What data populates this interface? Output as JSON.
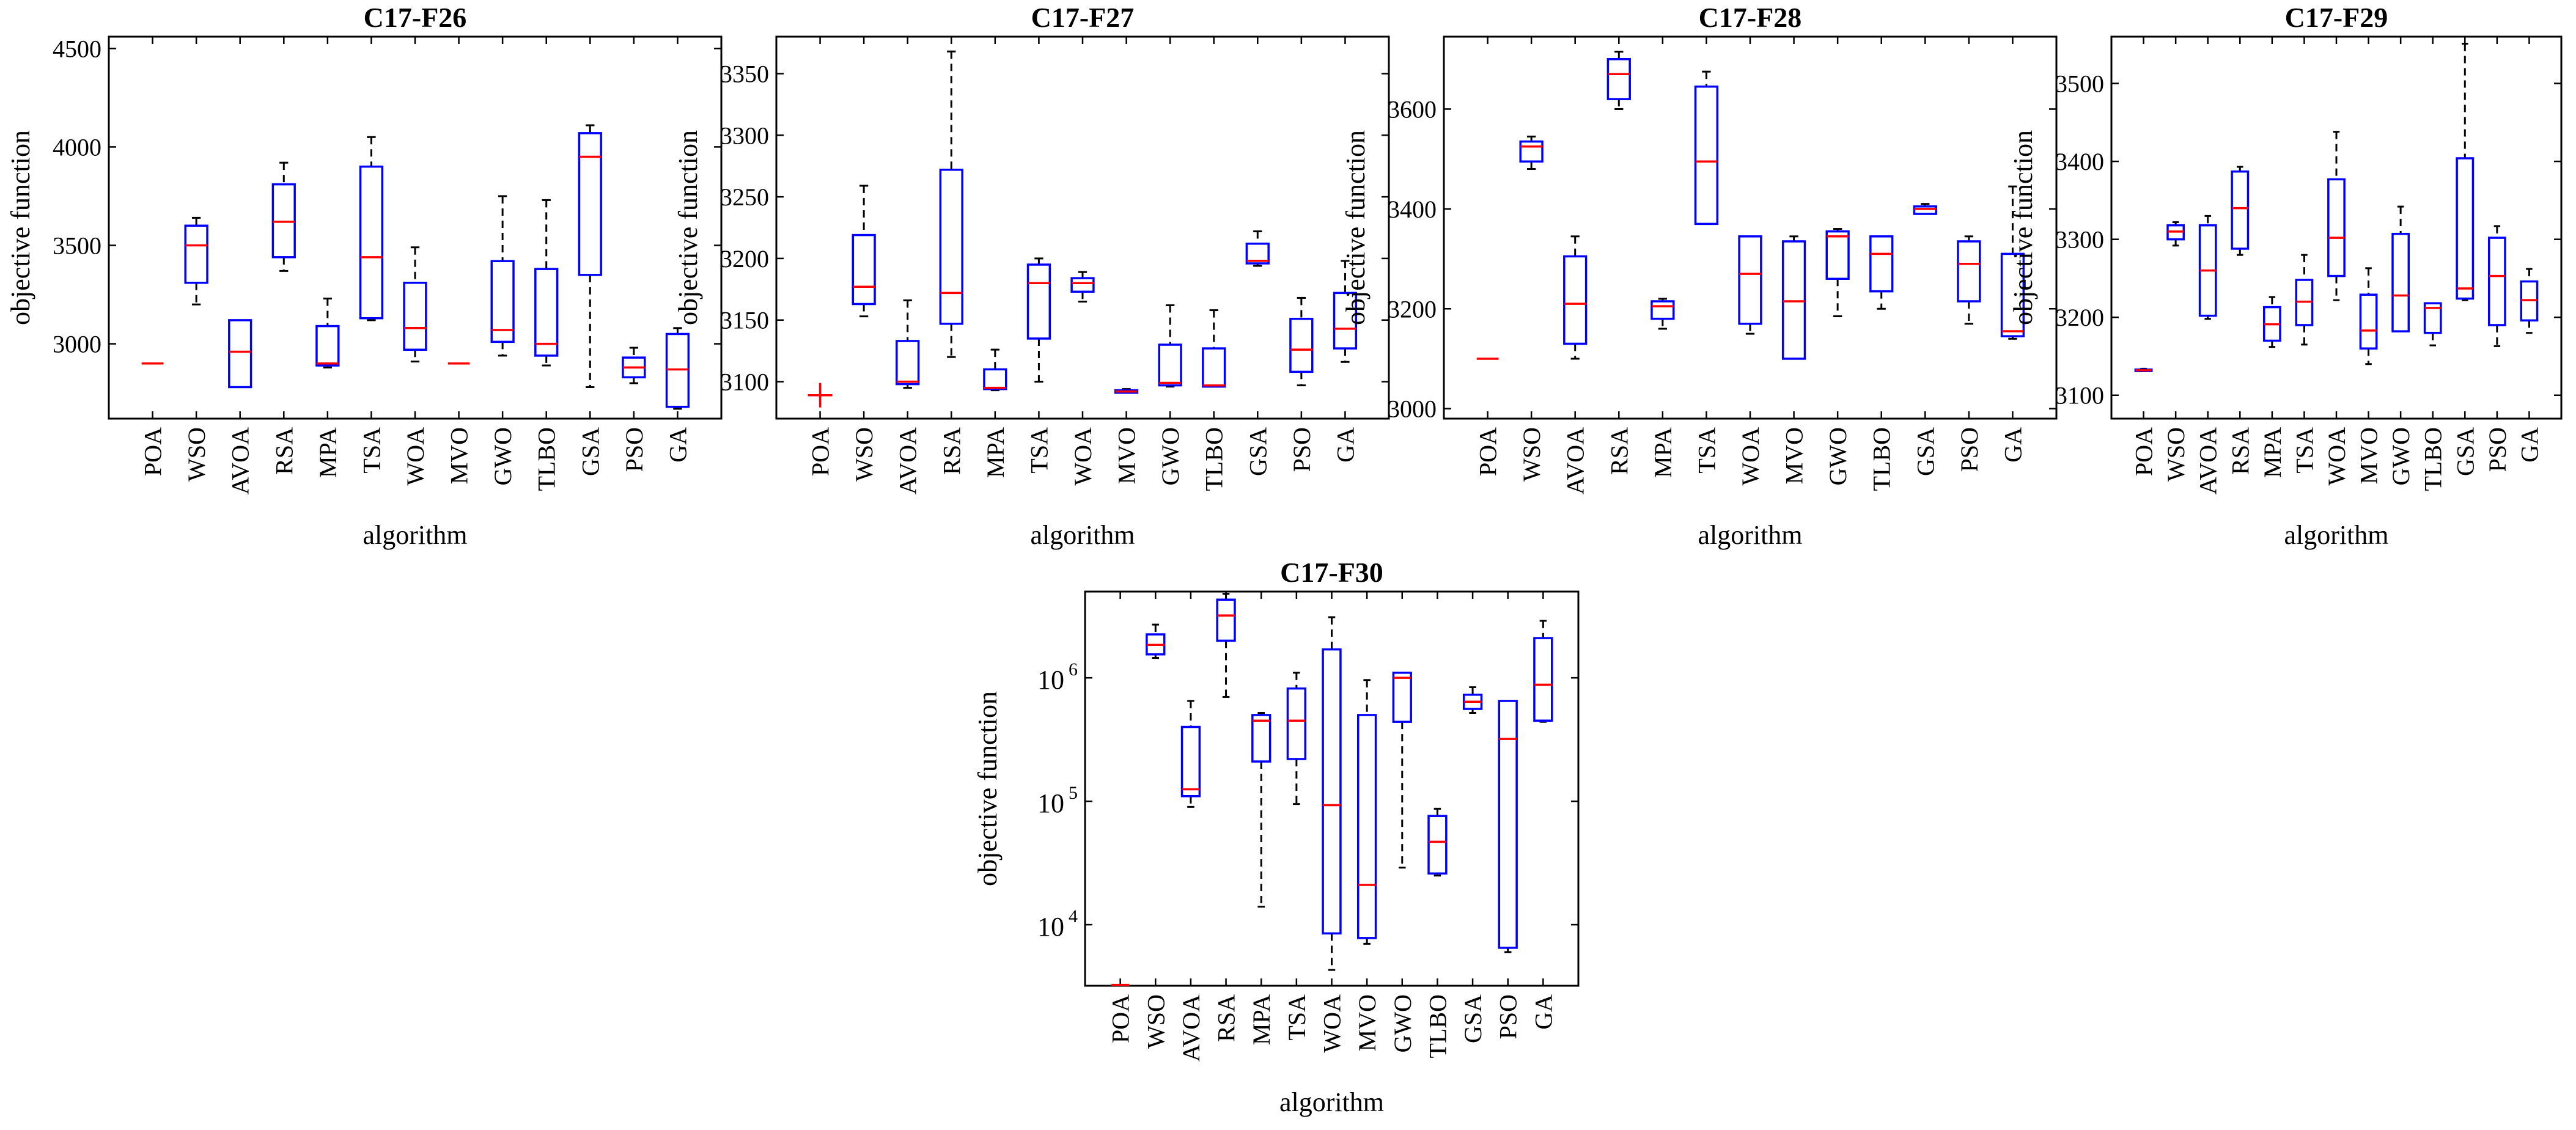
{
  "figure": {
    "categories": [
      "POA",
      "WSO",
      "AVOA",
      "RSA",
      "MPA",
      "TSA",
      "WOA",
      "MVO",
      "GWO",
      "TLBO",
      "GSA",
      "PSO",
      "GA"
    ],
    "colors": {
      "box": "#0000FF",
      "median": "#FF0000",
      "whisker": "#000000",
      "outlier": "#FF0000"
    }
  },
  "chart_data": [
    {
      "type": "box",
      "title": "C17-F26",
      "xlabel": "algorithm",
      "ylabel": "objective function",
      "yscale": "linear",
      "ylim": [
        2620,
        4560
      ],
      "yticks": [
        3000,
        3500,
        4000,
        4500
      ],
      "ytick_labels": [
        "3000",
        "3500",
        "4000",
        "4500"
      ],
      "boxes": [
        {
          "name": "POA",
          "min": 2900,
          "q1": 2900,
          "median": 2900,
          "q3": 2900,
          "max": 2900
        },
        {
          "name": "WSO",
          "min": 3200,
          "q1": 3310,
          "median": 3500,
          "q3": 3600,
          "max": 3640
        },
        {
          "name": "AVOA",
          "min": 2780,
          "q1": 2780,
          "median": 2960,
          "q3": 3120,
          "max": 3120
        },
        {
          "name": "RSA",
          "min": 3370,
          "q1": 3440,
          "median": 3620,
          "q3": 3810,
          "max": 3920
        },
        {
          "name": "MPA",
          "min": 2880,
          "q1": 2890,
          "median": 2900,
          "q3": 3090,
          "max": 3230
        },
        {
          "name": "TSA",
          "min": 3120,
          "q1": 3130,
          "median": 3440,
          "q3": 3900,
          "max": 4050
        },
        {
          "name": "WOA",
          "min": 2910,
          "q1": 2970,
          "median": 3080,
          "q3": 3310,
          "max": 3490
        },
        {
          "name": "MVO",
          "min": 2900,
          "q1": 2900,
          "median": 2900,
          "q3": 2900,
          "max": 2900
        },
        {
          "name": "GWO",
          "min": 2940,
          "q1": 3010,
          "median": 3070,
          "q3": 3420,
          "max": 3750
        },
        {
          "name": "TLBO",
          "min": 2890,
          "q1": 2940,
          "median": 3000,
          "q3": 3380,
          "max": 3730
        },
        {
          "name": "GSA",
          "min": 2780,
          "q1": 3350,
          "median": 3950,
          "q3": 4070,
          "max": 4110
        },
        {
          "name": "PSO",
          "min": 2800,
          "q1": 2830,
          "median": 2880,
          "q3": 2930,
          "max": 2980
        },
        {
          "name": "GA",
          "min": 2670,
          "q1": 2680,
          "median": 2870,
          "q3": 3050,
          "max": 3080
        }
      ],
      "outliers": []
    },
    {
      "type": "box",
      "title": "C17-F27",
      "xlabel": "algorithm",
      "ylabel": "objective function",
      "yscale": "linear",
      "ylim": [
        3070,
        3380
      ],
      "yticks": [
        3100,
        3150,
        3200,
        3250,
        3300,
        3350
      ],
      "ytick_labels": [
        "3100",
        "3150",
        "3200",
        "3250",
        "3300",
        "3350"
      ],
      "boxes": [
        {
          "name": "POA",
          "min": 3089,
          "q1": 3089,
          "median": 3089,
          "q3": 3089,
          "max": 3089
        },
        {
          "name": "WSO",
          "min": 3153,
          "q1": 3163,
          "median": 3177,
          "q3": 3219,
          "max": 3259
        },
        {
          "name": "AVOA",
          "min": 3095,
          "q1": 3098,
          "median": 3100,
          "q3": 3133,
          "max": 3166
        },
        {
          "name": "RSA",
          "min": 3120,
          "q1": 3147,
          "median": 3172,
          "q3": 3272,
          "max": 3368
        },
        {
          "name": "MPA",
          "min": 3093,
          "q1": 3094,
          "median": 3095,
          "q3": 3110,
          "max": 3126
        },
        {
          "name": "TSA",
          "min": 3100,
          "q1": 3135,
          "median": 3180,
          "q3": 3195,
          "max": 3200
        },
        {
          "name": "WOA",
          "min": 3165,
          "q1": 3173,
          "median": 3180,
          "q3": 3184,
          "max": 3189
        },
        {
          "name": "MVO",
          "min": 3091,
          "q1": 3091,
          "median": 3092,
          "q3": 3093,
          "max": 3094
        },
        {
          "name": "GWO",
          "min": 3096,
          "q1": 3097,
          "median": 3099,
          "q3": 3130,
          "max": 3162
        },
        {
          "name": "TLBO",
          "min": 3096,
          "q1": 3096,
          "median": 3097,
          "q3": 3127,
          "max": 3158
        },
        {
          "name": "GSA",
          "min": 3194,
          "q1": 3196,
          "median": 3198,
          "q3": 3212,
          "max": 3222
        },
        {
          "name": "PSO",
          "min": 3097,
          "q1": 3108,
          "median": 3126,
          "q3": 3151,
          "max": 3168
        },
        {
          "name": "GA",
          "min": 3116,
          "q1": 3127,
          "median": 3143,
          "q3": 3172,
          "max": 3198
        }
      ],
      "outliers": [
        {
          "name": "POA",
          "value": 3089
        }
      ]
    },
    {
      "type": "box",
      "title": "C17-F28",
      "xlabel": "algorithm",
      "ylabel": "objective function",
      "yscale": "linear",
      "ylim": [
        2980,
        3745
      ],
      "yticks": [
        3000,
        3200,
        3400,
        3600
      ],
      "ytick_labels": [
        "3000",
        "3200",
        "3400",
        "3600"
      ],
      "boxes": [
        {
          "name": "POA",
          "min": 3100,
          "q1": 3100,
          "median": 3100,
          "q3": 3100,
          "max": 3100
        },
        {
          "name": "WSO",
          "min": 3480,
          "q1": 3495,
          "median": 3525,
          "q3": 3535,
          "max": 3545
        },
        {
          "name": "AVOA",
          "min": 3100,
          "q1": 3130,
          "median": 3210,
          "q3": 3305,
          "max": 3345
        },
        {
          "name": "RSA",
          "min": 3600,
          "q1": 3620,
          "median": 3670,
          "q3": 3700,
          "max": 3715
        },
        {
          "name": "MPA",
          "min": 3160,
          "q1": 3180,
          "median": 3205,
          "q3": 3215,
          "max": 3220
        },
        {
          "name": "TSA",
          "min": 3370,
          "q1": 3370,
          "median": 3495,
          "q3": 3645,
          "max": 3675
        },
        {
          "name": "WOA",
          "min": 3150,
          "q1": 3170,
          "median": 3270,
          "q3": 3345,
          "max": 3345
        },
        {
          "name": "MVO",
          "min": 3100,
          "q1": 3100,
          "median": 3215,
          "q3": 3335,
          "max": 3345
        },
        {
          "name": "GWO",
          "min": 3185,
          "q1": 3260,
          "median": 3345,
          "q3": 3355,
          "max": 3360
        },
        {
          "name": "TLBO",
          "min": 3200,
          "q1": 3235,
          "median": 3310,
          "q3": 3345,
          "max": 3345
        },
        {
          "name": "GSA",
          "min": 3390,
          "q1": 3390,
          "median": 3400,
          "q3": 3405,
          "max": 3410
        },
        {
          "name": "PSO",
          "min": 3170,
          "q1": 3215,
          "median": 3290,
          "q3": 3335,
          "max": 3345
        },
        {
          "name": "GA",
          "min": 3140,
          "q1": 3145,
          "median": 3155,
          "q3": 3310,
          "max": 3445
        }
      ],
      "outliers": []
    },
    {
      "type": "box",
      "title": "C17-F29",
      "xlabel": "algorithm",
      "ylabel": "objective function",
      "yscale": "linear",
      "ylim": [
        3070,
        3560
      ],
      "yticks": [
        3100,
        3200,
        3300,
        3400,
        3500
      ],
      "ytick_labels": [
        "3100",
        "3200",
        "3300",
        "3400",
        "3500"
      ],
      "boxes": [
        {
          "name": "POA",
          "min": 3131,
          "q1": 3131,
          "median": 3132,
          "q3": 3133,
          "max": 3134
        },
        {
          "name": "WSO",
          "min": 3292,
          "q1": 3300,
          "median": 3310,
          "q3": 3318,
          "max": 3322
        },
        {
          "name": "AVOA",
          "min": 3198,
          "q1": 3202,
          "median": 3260,
          "q3": 3318,
          "max": 3330
        },
        {
          "name": "RSA",
          "min": 3280,
          "q1": 3288,
          "median": 3340,
          "q3": 3387,
          "max": 3393
        },
        {
          "name": "MPA",
          "min": 3162,
          "q1": 3170,
          "median": 3191,
          "q3": 3213,
          "max": 3226
        },
        {
          "name": "TSA",
          "min": 3165,
          "q1": 3190,
          "median": 3220,
          "q3": 3248,
          "max": 3280
        },
        {
          "name": "WOA",
          "min": 3222,
          "q1": 3253,
          "median": 3302,
          "q3": 3377,
          "max": 3438
        },
        {
          "name": "MVO",
          "min": 3140,
          "q1": 3160,
          "median": 3183,
          "q3": 3229,
          "max": 3263
        },
        {
          "name": "GWO",
          "min": 3182,
          "q1": 3182,
          "median": 3228,
          "q3": 3307,
          "max": 3342
        },
        {
          "name": "TLBO",
          "min": 3164,
          "q1": 3180,
          "median": 3212,
          "q3": 3218,
          "max": 3218
        },
        {
          "name": "GSA",
          "min": 3222,
          "q1": 3224,
          "median": 3237,
          "q3": 3404,
          "max": 3551
        },
        {
          "name": "PSO",
          "min": 3163,
          "q1": 3190,
          "median": 3253,
          "q3": 3302,
          "max": 3317
        },
        {
          "name": "GA",
          "min": 3180,
          "q1": 3196,
          "median": 3222,
          "q3": 3246,
          "max": 3262
        }
      ],
      "outliers": []
    },
    {
      "type": "box",
      "title": "C17-F30",
      "xlabel": "algorithm",
      "ylabel": "objective function",
      "yscale": "log",
      "ylim": [
        3200,
        5000000
      ],
      "yticks": [
        10000,
        100000,
        1000000
      ],
      "ytick_labels": [
        "10",
        "10",
        "10"
      ],
      "ytick_exponents": [
        "4",
        "5",
        "6"
      ],
      "boxes": [
        {
          "name": "POA",
          "min": 3250,
          "q1": 3250,
          "median": 3250,
          "q3": 3250,
          "max": 3250
        },
        {
          "name": "WSO",
          "min": 1450000,
          "q1": 1550000,
          "median": 1850000,
          "q3": 2250000,
          "max": 2700000
        },
        {
          "name": "AVOA",
          "min": 90000,
          "q1": 110000,
          "median": 125000,
          "q3": 400000,
          "max": 650000
        },
        {
          "name": "RSA",
          "min": 700000,
          "q1": 2000000,
          "median": 3200000,
          "q3": 4300000,
          "max": 4800000
        },
        {
          "name": "MPA",
          "min": 14000,
          "q1": 210000,
          "median": 450000,
          "q3": 500000,
          "max": 520000
        },
        {
          "name": "TSA",
          "min": 95000,
          "q1": 220000,
          "median": 450000,
          "q3": 820000,
          "max": 1100000
        },
        {
          "name": "WOA",
          "min": 4300,
          "q1": 8500,
          "median": 93000,
          "q3": 1700000,
          "max": 3100000
        },
        {
          "name": "MVO",
          "min": 7000,
          "q1": 7800,
          "median": 21000,
          "q3": 500000,
          "max": 960000
        },
        {
          "name": "GWO",
          "min": 29000,
          "q1": 440000,
          "median": 1000000,
          "q3": 1100000,
          "max": 1100000
        },
        {
          "name": "TLBO",
          "min": 25000,
          "q1": 26000,
          "median": 47000,
          "q3": 76000,
          "max": 87000
        },
        {
          "name": "GSA",
          "min": 520000,
          "q1": 560000,
          "median": 640000,
          "q3": 730000,
          "max": 840000
        },
        {
          "name": "PSO",
          "min": 6000,
          "q1": 6500,
          "median": 320000,
          "q3": 650000,
          "max": 650000
        },
        {
          "name": "GA",
          "min": 440000,
          "q1": 450000,
          "median": 880000,
          "q3": 2100000,
          "max": 2900000
        }
      ],
      "outliers": []
    }
  ]
}
